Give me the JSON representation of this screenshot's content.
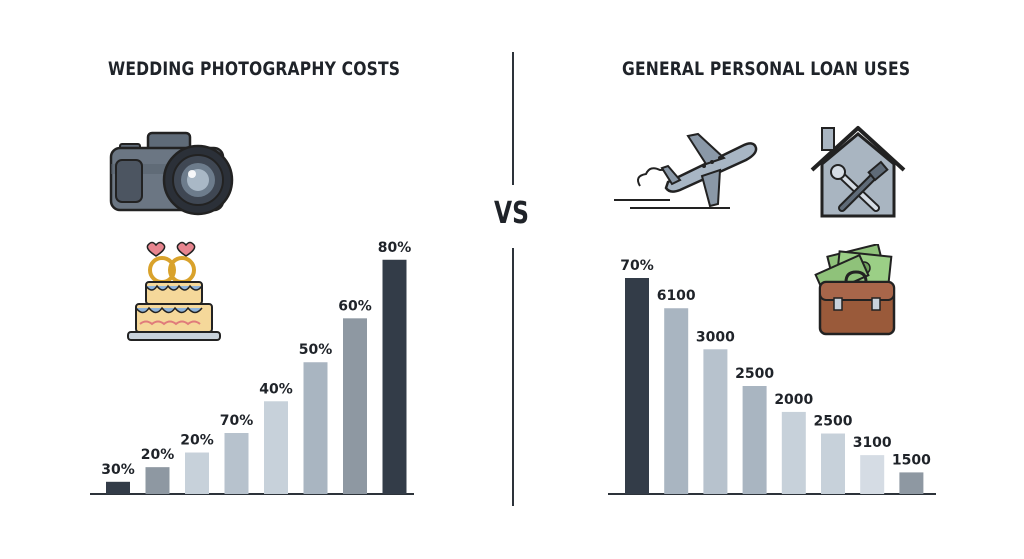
{
  "header": {
    "left_title": "WEDDING PHOTOGRAPHY COSTS",
    "right_title": "GENERAL PERSONAL LOAN USES",
    "vs_label": "VS"
  },
  "icons": {
    "left": [
      "camera-icon",
      "wedding-cake-icon"
    ],
    "right": [
      "airplane-icon",
      "house-repair-icon",
      "briefcase-money-icon"
    ]
  },
  "colors": {
    "dark": "#333c48",
    "grays": [
      "#8e98a2",
      "#a9b5c1",
      "#b7c2cd",
      "#c7d1da",
      "#d5dce4"
    ]
  },
  "chart_data": [
    {
      "type": "bar",
      "title": "WEDDING PHOTOGRAPHY COSTS",
      "categories": [
        "",
        "",
        "",
        "",
        "",
        "",
        "",
        ""
      ],
      "values": [
        30,
        20,
        20,
        70,
        40,
        50,
        60,
        80
      ],
      "labels": [
        "30%",
        "20%",
        "20%",
        "70%",
        "40%",
        "50%",
        "60%",
        "80%"
      ],
      "bar_heights_relative": [
        5,
        11,
        17,
        25,
        38,
        54,
        72,
        96
      ],
      "colors": [
        "#333c48",
        "#8e98a2",
        "#c7d1da",
        "#b7c2cd",
        "#c7d1da",
        "#a9b5c1",
        "#8e98a2",
        "#333c48"
      ],
      "xlabel": "",
      "ylabel": "",
      "grid": false
    },
    {
      "type": "bar",
      "title": "GENERAL PERSONAL LOAN USES",
      "categories": [
        "",
        "",
        "",
        "",
        "",
        "",
        "",
        ""
      ],
      "values": [
        70,
        6100,
        3000,
        2500,
        2000,
        2500,
        3100,
        1500
      ],
      "labels": [
        "70%",
        "6100",
        "3000",
        "2500",
        "2000",
        "2500",
        "3100",
        "1500"
      ],
      "bar_heights_relative": [
        100,
        86,
        67,
        50,
        38,
        28,
        18,
        10
      ],
      "colors": [
        "#333c48",
        "#a9b5c1",
        "#b7c2cd",
        "#a9b5c1",
        "#c7d1da",
        "#c7d1da",
        "#d5dce4",
        "#8e98a2"
      ],
      "xlabel": "",
      "ylabel": "",
      "grid": false
    }
  ]
}
